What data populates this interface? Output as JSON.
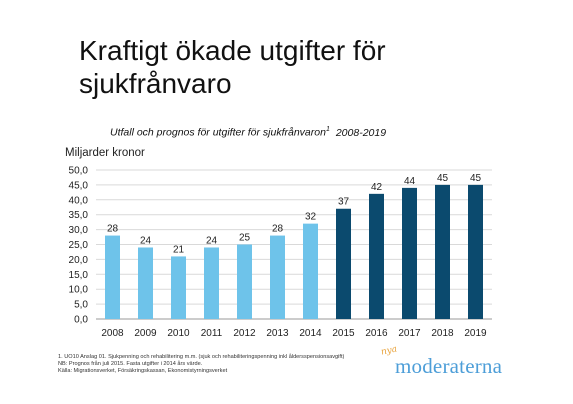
{
  "slide": {
    "title": "Kraftigt ökade utgifter för\nsjukfrånvaro",
    "subtitle": "Utfall och prognos för utgifter för sjukfrånvaron",
    "subtitle_sup": "1",
    "subtitle_years": "2008-2019"
  },
  "colors": {
    "outcome": "#6ec3ea",
    "forecast": "#0b4a6e",
    "grid": "#d9d9d9",
    "axis": "#999999"
  },
  "chart_data": {
    "type": "bar",
    "ylabel": "Miljarder kronor",
    "categories": [
      "2008",
      "2009",
      "2010",
      "2011",
      "2012",
      "2013",
      "2014",
      "2015",
      "2016",
      "2017",
      "2018",
      "2019"
    ],
    "values": [
      28,
      24,
      21,
      24,
      25,
      28,
      32,
      37,
      42,
      44,
      45,
      45
    ],
    "value_labels": [
      "28",
      "24",
      "21",
      "24",
      "25",
      "28",
      "32",
      "37",
      "42",
      "44",
      "45",
      "45"
    ],
    "series_type": [
      "outcome",
      "outcome",
      "outcome",
      "outcome",
      "outcome",
      "outcome",
      "outcome",
      "forecast",
      "forecast",
      "forecast",
      "forecast",
      "forecast"
    ],
    "ylim": [
      0,
      50
    ],
    "yticks": [
      "0,0",
      "5,0",
      "10,0",
      "15,0",
      "20,0",
      "25,0",
      "30,0",
      "35,0",
      "40,0",
      "45,0",
      "50,0"
    ],
    "grid": true
  },
  "footnotes": [
    "1. UO10 Anslag 01. Sjukpenning och rehabilitering m.m. (sjuk och rehabiliteringspenning inkl åldersspensionsavgift)",
    "NB: Prognos från juli 2015. Fasta utgifter i 2014 års värde.",
    "Källa: Migrationsverket, Försäkringskassan, Ekonomistyrningsverket"
  ],
  "logo": {
    "prefix": "nya",
    "name": "moderaterna"
  }
}
